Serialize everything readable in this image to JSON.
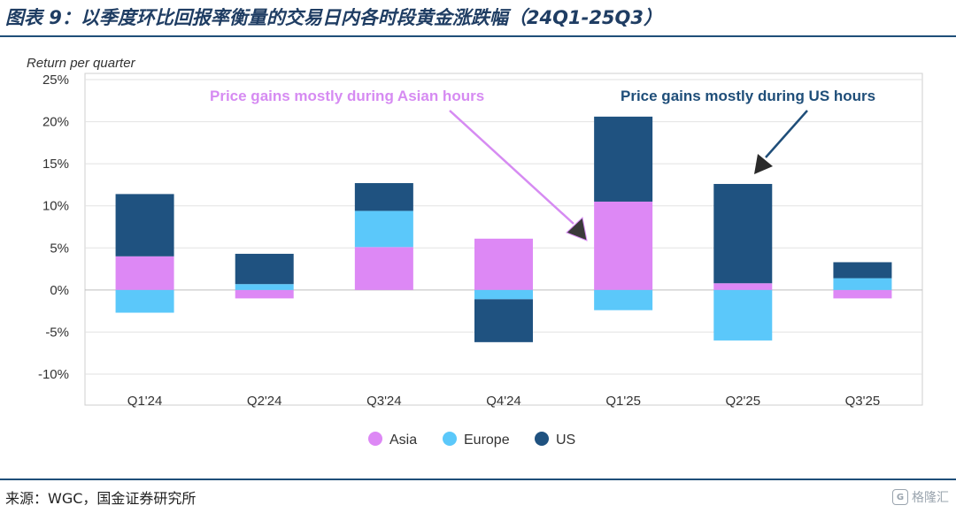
{
  "figure": {
    "title": "图表 9：以季度环比回报率衡量的交易日内各时段黄金涨跌幅（24Q1-25Q3）",
    "source": "来源：WGC，国金证券研究所",
    "watermark_text": "格隆汇"
  },
  "chart_data": {
    "type": "bar",
    "stacked": true,
    "ylabel": "Return per quarter",
    "ylim": [
      -10,
      25
    ],
    "yticks": [
      25,
      20,
      15,
      10,
      5,
      0,
      -5,
      -10
    ],
    "ytick_labels": [
      "25%",
      "20%",
      "15%",
      "10%",
      "5%",
      "0%",
      "-5%",
      "-10%"
    ],
    "grid": true,
    "categories": [
      "Q1'24",
      "Q2'24",
      "Q3'24",
      "Q4'24",
      "Q1'25",
      "Q2'25",
      "Q3'25"
    ],
    "series": [
      {
        "name": "Asia",
        "color": "#dd88f5",
        "values": [
          4.0,
          -1.0,
          5.1,
          6.1,
          10.5,
          0.8,
          -1.0
        ]
      },
      {
        "name": "Europe",
        "color": "#5bc8fa",
        "values": [
          -2.7,
          0.7,
          4.3,
          -1.1,
          -2.4,
          -6.0,
          1.4
        ]
      },
      {
        "name": "US",
        "color": "#1f5280",
        "values": [
          7.4,
          3.6,
          3.3,
          -5.1,
          10.1,
          11.8,
          1.9
        ]
      }
    ],
    "annotations": [
      {
        "text": "Price gains mostly during Asian hours",
        "color": "#d68bf2",
        "target": "Q1'25"
      },
      {
        "text": "Price gains mostly during US hours",
        "color": "#1f4e79",
        "target": "Q2'25"
      }
    ],
    "legend_position": "bottom"
  }
}
